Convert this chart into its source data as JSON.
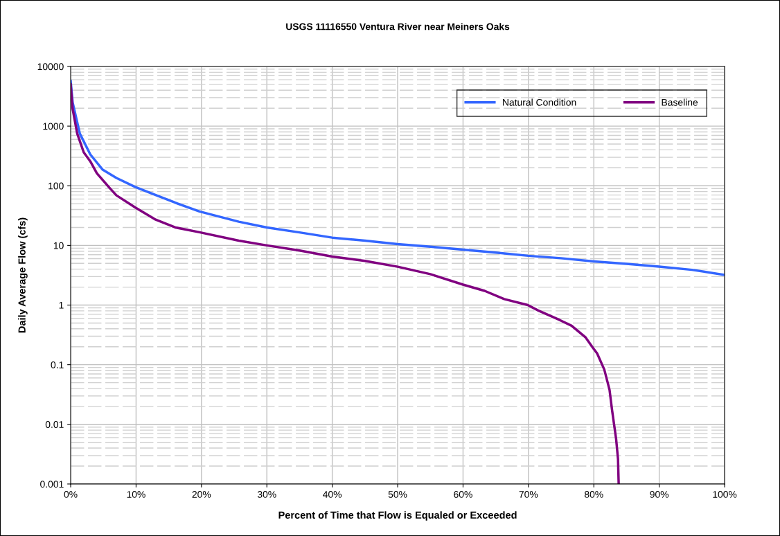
{
  "chart_data": {
    "type": "line",
    "title": "USGS 11116550 Ventura River near Meiners Oaks",
    "xlabel": "Percent of Time that Flow is Equaled or Exceeded",
    "ylabel": "Daily Average Flow (cfs)",
    "log": "y",
    "grid": true,
    "legend": "top right",
    "line_style": "solid",
    "marker": "none",
    "xlim": [
      0,
      100
    ],
    "xticks": [
      {
        "value": 0,
        "label": "0%"
      },
      {
        "value": 10,
        "label": "10%"
      },
      {
        "value": 20,
        "label": "20%"
      },
      {
        "value": 30,
        "label": "30%"
      },
      {
        "value": 40,
        "label": "40%"
      },
      {
        "value": 50,
        "label": "50%"
      },
      {
        "value": 60,
        "label": "60%"
      },
      {
        "value": 70,
        "label": "70%"
      },
      {
        "value": 80,
        "label": "80%"
      },
      {
        "value": 90,
        "label": "90%"
      },
      {
        "value": 100,
        "label": "100%"
      }
    ],
    "ylim": [
      0.001,
      10000
    ],
    "yticks": [
      0.001,
      0.01,
      0.1,
      1,
      10,
      100,
      1000,
      10000
    ],
    "series": [
      {
        "name": "Natural Condition",
        "color": "#3366ff",
        "x": [
          0,
          0.3,
          1.4,
          3,
          4.9,
          7,
          9.9,
          13,
          16,
          19.7,
          25.7,
          30,
          35,
          40,
          45,
          50,
          55,
          60,
          65,
          70,
          75,
          80,
          85,
          90,
          95,
          100
        ],
        "values": [
          5700,
          2500,
          750,
          335,
          186,
          135,
          95,
          70,
          52,
          37,
          25,
          20,
          16.5,
          13.5,
          12,
          10.5,
          9.5,
          8.5,
          7.6,
          6.7,
          6.1,
          5.4,
          4.9,
          4.4,
          3.9,
          3.2
        ]
      },
      {
        "name": "Baseline",
        "color": "#800080",
        "x": [
          0,
          0.3,
          1,
          2,
          3,
          4,
          6,
          7,
          9.9,
          13,
          16,
          19.7,
          25.7,
          30,
          35,
          40,
          45,
          50,
          55,
          60,
          63.3,
          66.3,
          69.9,
          71.5,
          74.8,
          76.6,
          78.7,
          79.9,
          80.5,
          81.6,
          82.4,
          82.8,
          83.4,
          83.7,
          83.8
        ],
        "values": [
          5000,
          1950,
          750,
          363,
          257,
          162,
          91,
          69,
          43,
          27,
          20,
          16.6,
          12,
          10,
          8.2,
          6.5,
          5.5,
          4.4,
          3.3,
          2.2,
          1.73,
          1.26,
          1.0,
          0.81,
          0.56,
          0.45,
          0.29,
          0.19,
          0.155,
          0.083,
          0.038,
          0.017,
          0.0058,
          0.0026,
          0.001
        ]
      }
    ]
  }
}
